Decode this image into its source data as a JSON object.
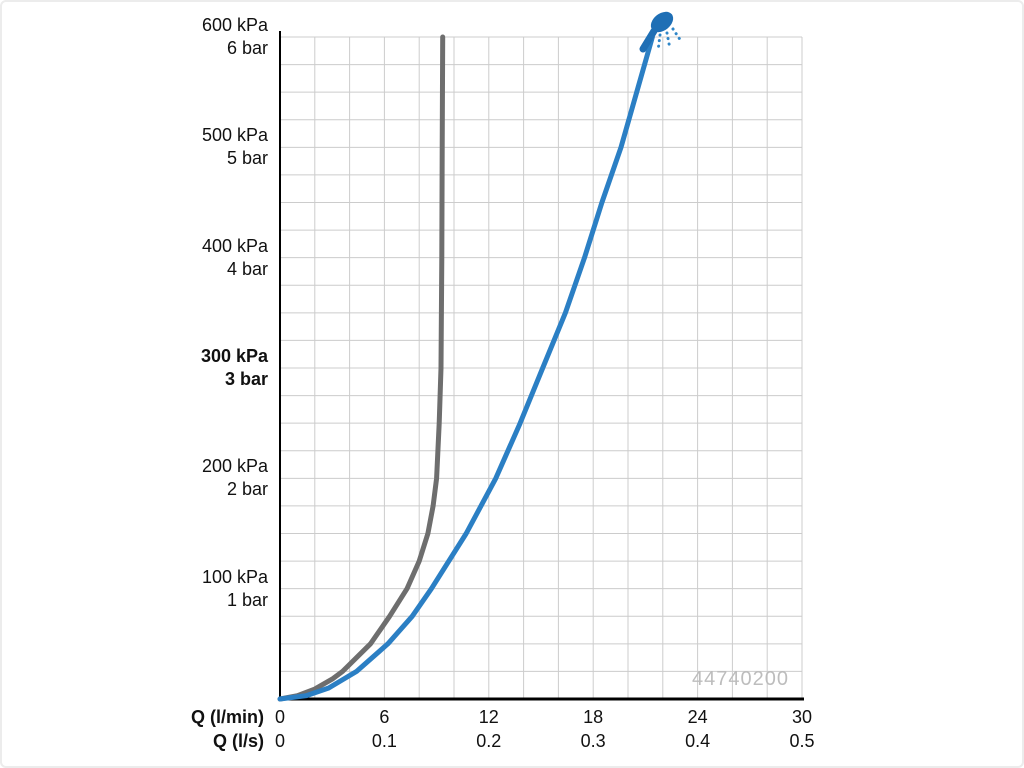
{
  "chart_data": {
    "type": "line",
    "title": "",
    "xlabel_primary": "Q (l/min)",
    "xlabel_secondary": "Q (l/s)",
    "x_range_lmin": [
      0,
      30
    ],
    "y_range_kpa": [
      0,
      600
    ],
    "x_ticks": [
      {
        "lmin": 0,
        "label_lmin": "0",
        "label_ls": "0"
      },
      {
        "lmin": 6,
        "label_lmin": "6",
        "label_ls": "0.1"
      },
      {
        "lmin": 12,
        "label_lmin": "12",
        "label_ls": "0.2"
      },
      {
        "lmin": 18,
        "label_lmin": "18",
        "label_ls": "0.3"
      },
      {
        "lmin": 24,
        "label_lmin": "24",
        "label_ls": "0.4"
      },
      {
        "lmin": 30,
        "label_lmin": "30",
        "label_ls": "0.5"
      }
    ],
    "y_ticks": [
      {
        "kpa": 600,
        "line1": "600 kPa",
        "line2": "6 bar",
        "bold": false
      },
      {
        "kpa": 500,
        "line1": "500 kPa",
        "line2": "5 bar",
        "bold": false
      },
      {
        "kpa": 400,
        "line1": "400 kPa",
        "line2": "4 bar",
        "bold": false
      },
      {
        "kpa": 300,
        "line1": "300 kPa",
        "line2": "3 bar",
        "bold": true
      },
      {
        "kpa": 200,
        "line1": "200 kPa",
        "line2": "2 bar",
        "bold": false
      },
      {
        "kpa": 100,
        "line1": "100 kPa",
        "line2": "1 bar",
        "bold": false
      }
    ],
    "grid": {
      "on": true,
      "minor_x_lmin": 2,
      "minor_y_kpa": 25,
      "color": "#cccccc"
    },
    "series": [
      {
        "name": "flow-restricted-gray",
        "color": "#6e6e6e",
        "width": 5,
        "points": [
          [
            0,
            0
          ],
          [
            1,
            3
          ],
          [
            2,
            9
          ],
          [
            3,
            18
          ],
          [
            3.6,
            25
          ],
          [
            5.2,
            50
          ],
          [
            6.3,
            75
          ],
          [
            7.3,
            100
          ],
          [
            8.0,
            125
          ],
          [
            8.5,
            150
          ],
          [
            8.8,
            175
          ],
          [
            9.0,
            200
          ],
          [
            9.15,
            250
          ],
          [
            9.25,
            300
          ],
          [
            9.3,
            400
          ],
          [
            9.32,
            500
          ],
          [
            9.35,
            600
          ]
        ]
      },
      {
        "name": "free-flow-blue",
        "color": "#2b7fc4",
        "width": 5,
        "points": [
          [
            0,
            0
          ],
          [
            1.5,
            3
          ],
          [
            2.8,
            10
          ],
          [
            4.4,
            25
          ],
          [
            6.2,
            50
          ],
          [
            7.6,
            75
          ],
          [
            8.7,
            100
          ],
          [
            10.7,
            150
          ],
          [
            12.4,
            200
          ],
          [
            13.8,
            250
          ],
          [
            15.1,
            300
          ],
          [
            16.4,
            350
          ],
          [
            17.5,
            400
          ],
          [
            18.5,
            450
          ],
          [
            19.6,
            500
          ],
          [
            20.5,
            550
          ],
          [
            21.4,
            600
          ]
        ]
      }
    ],
    "legend": "none",
    "watermark": "44740200",
    "icon": "shower-head-icon",
    "colors": {
      "blue": "#2b7fc4",
      "gray": "#6e6e6e",
      "grid": "#cccccc",
      "axis": "#000000",
      "watermark": "#bdbdbd",
      "icon_blue": "#1f6fb5"
    }
  }
}
